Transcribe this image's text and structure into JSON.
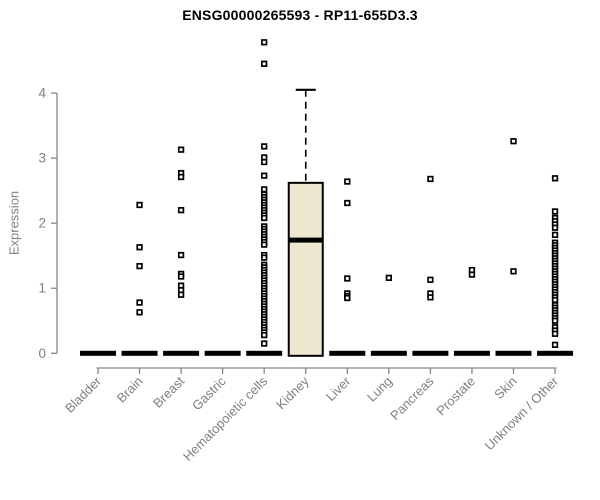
{
  "chart_data": {
    "type": "boxplot",
    "title": "ENSG00000265593 - RP11-655D3.3",
    "ylabel": "Expression",
    "ylim": [
      0,
      4
    ],
    "yticks": [
      0,
      1,
      2,
      3,
      4
    ],
    "grid": "off",
    "legend": "none",
    "categories": [
      "Bladder",
      "Brain",
      "Breast",
      "Gastric",
      "Hematopoietic cells",
      "Kidney",
      "Liver",
      "Lung",
      "Pancreas",
      "Prostate",
      "Skin",
      "Unknown / Other"
    ],
    "baseline_median_value": 0,
    "series": [
      {
        "category": "Bladder",
        "median": 0,
        "values": []
      },
      {
        "category": "Brain",
        "median": 0,
        "values": [
          2.28,
          1.63,
          1.34,
          0.78,
          0.63
        ]
      },
      {
        "category": "Breast",
        "median": 0,
        "values": [
          3.13,
          2.77,
          2.71,
          2.2,
          1.51,
          1.22,
          1.18,
          1.04,
          0.97,
          0.9
        ]
      },
      {
        "category": "Gastric",
        "median": 0,
        "values": []
      },
      {
        "category": "Hematopoietic cells",
        "median": 0,
        "values": [
          4.78,
          4.45,
          3.18,
          3.01,
          2.94,
          2.73,
          2.52,
          2.44,
          2.4,
          2.36,
          2.32,
          2.28,
          2.24,
          2.2,
          2.16,
          2.12,
          2.08,
          1.95,
          1.91,
          1.87,
          1.83,
          1.79,
          1.75,
          1.71,
          1.67,
          1.51,
          1.47,
          1.36,
          1.32,
          1.28,
          1.24,
          1.2,
          1.16,
          1.12,
          1.08,
          1.04,
          1.0,
          0.96,
          0.92,
          0.88,
          0.84,
          0.8,
          0.76,
          0.72,
          0.68,
          0.64,
          0.6,
          0.56,
          0.52,
          0.48,
          0.44,
          0.4,
          0.36,
          0.32,
          0.28,
          0.15
        ]
      },
      {
        "category": "Kidney",
        "box": true,
        "values": []
      },
      {
        "category": "Liver",
        "median": 0,
        "values": [
          2.64,
          2.31,
          1.15,
          0.92,
          0.88,
          0.85
        ]
      },
      {
        "category": "Lung",
        "median": 0,
        "values": [
          1.16
        ]
      },
      {
        "category": "Pancreas",
        "median": 0,
        "values": [
          2.68,
          1.13,
          0.92,
          0.86
        ]
      },
      {
        "category": "Prostate",
        "median": 0,
        "values": [
          1.28,
          1.21
        ]
      },
      {
        "category": "Skin",
        "median": 0,
        "values": [
          3.26,
          1.26
        ]
      },
      {
        "category": "Unknown / Other",
        "median": 0,
        "values": [
          2.69,
          2.18,
          2.08,
          2.03,
          1.98,
          1.93,
          1.82,
          1.7,
          1.66,
          1.62,
          1.58,
          1.54,
          1.5,
          1.46,
          1.42,
          1.38,
          1.34,
          1.3,
          1.26,
          1.22,
          1.18,
          1.14,
          1.1,
          1.06,
          1.02,
          0.98,
          0.94,
          0.9,
          0.86,
          0.82,
          0.74,
          0.7,
          0.66,
          0.62,
          0.58,
          0.54,
          0.5,
          0.4,
          0.35,
          0.3,
          0.13
        ]
      }
    ],
    "box": {
      "category": "Kidney",
      "q1": 0,
      "median": 1.74,
      "q3": 2.62,
      "whisker_high": 4.05
    },
    "colors": {
      "box_fill": "#EDE8CF",
      "box_stroke": "#000000",
      "median": "#000000",
      "point_stroke": "#000000",
      "point_fill": "#ffffff",
      "axis_line": "#878787",
      "tick_text": "#808080",
      "title_text": "#000000",
      "background": "#ffffff"
    }
  }
}
